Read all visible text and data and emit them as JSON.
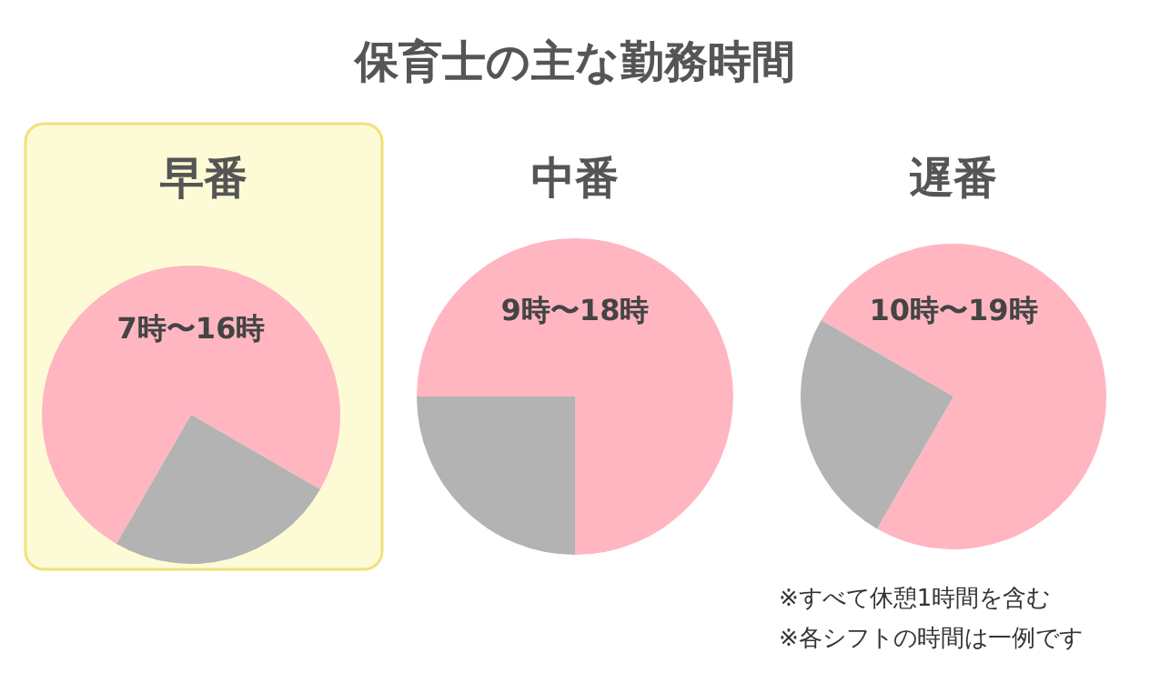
{
  "chart_data": [
    {
      "type": "pie",
      "subtitle": "早番",
      "categories": [
        null,
        null
      ],
      "values": [
        75,
        25
      ],
      "colors": [
        "#ffb6c1",
        "#b3b3b3"
      ],
      "annotations": [
        "7時〜16時"
      ]
    },
    {
      "type": "pie",
      "title": "保育士の主な勤務時間",
      "subtitle": "中番",
      "categories": [
        null,
        null
      ],
      "values": [
        75,
        25
      ],
      "colors": [
        "#ffb6c1",
        "#b3b3b3"
      ],
      "annotations": [
        "9時〜18時"
      ]
    },
    {
      "type": "pie",
      "subtitle": "遅番",
      "categories": [
        null,
        null
      ],
      "values": [
        75,
        25
      ],
      "colors": [
        "#ffb6c1",
        "#b3b3b3"
      ],
      "annotations": [
        "10時〜19時",
        "※すべて休憩1時間を含む",
        "※各シフトの時間は一例です"
      ]
    }
  ]
}
